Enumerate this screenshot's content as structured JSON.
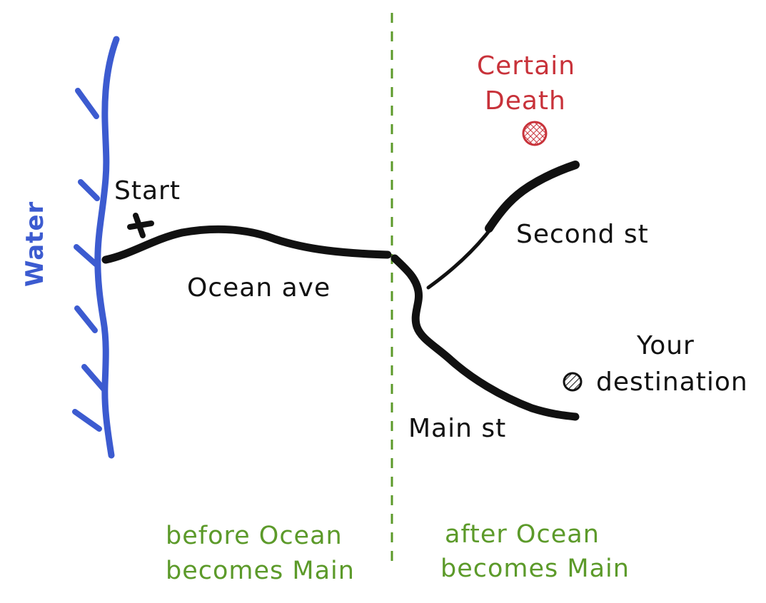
{
  "colors": {
    "water": "#3c5bd0",
    "road": "#111111",
    "divider": "#5c9a2a",
    "danger": "#c8323a",
    "text": "#111111"
  },
  "labels": {
    "water": "Water",
    "start": "Start",
    "ocean_ave": "Ocean ave",
    "second_st": "Second st",
    "main_st": "Main st",
    "certain_death_line1": "Certain",
    "certain_death_line2": "Death",
    "your_destination_line1": "Your",
    "your_destination_line2": "destination",
    "before_line1": "before Ocean",
    "before_line2": "becomes Main",
    "after_line1": "after Ocean",
    "after_line2": "becomes Main"
  },
  "icons": {
    "start_marker": "x-mark-icon",
    "danger_marker": "crosshatched-circle-icon",
    "destination_marker": "hatched-circle-icon"
  }
}
